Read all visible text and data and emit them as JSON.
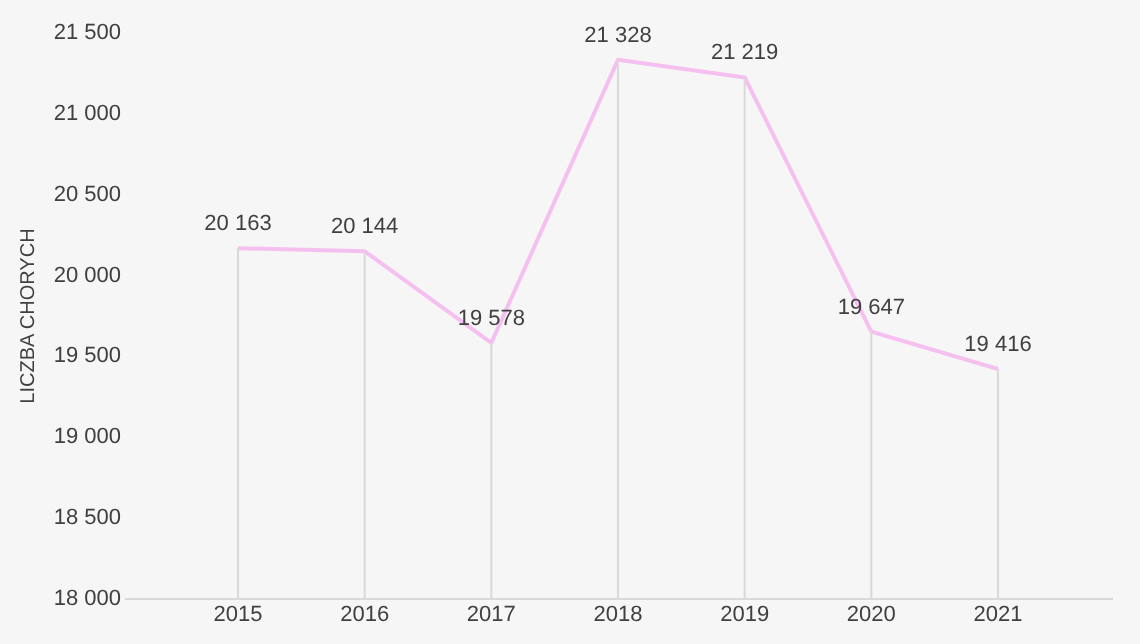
{
  "chart_data": {
    "type": "line",
    "ylabel": "LICZBA CHORYCH",
    "categories": [
      "2015",
      "2016",
      "2017",
      "2018",
      "2019",
      "2020",
      "2021"
    ],
    "series": [
      {
        "color": "#f5c0f0",
        "values": [
          20163,
          20144,
          19578,
          21328,
          21219,
          19647,
          19416
        ],
        "value_labels": [
          "20 163",
          "20 144",
          "19 578",
          "21 328",
          "21 219",
          "19 647",
          "19 416"
        ]
      }
    ],
    "ylim": [
      18000,
      21500
    ],
    "yticks": [
      {
        "value": 18000,
        "label": "18 000"
      },
      {
        "value": 18500,
        "label": "18 500"
      },
      {
        "value": 19000,
        "label": "19 000"
      },
      {
        "value": 19500,
        "label": "19 500"
      },
      {
        "value": 20000,
        "label": "20 000"
      },
      {
        "value": 20500,
        "label": "20 500"
      },
      {
        "value": 21000,
        "label": "21 000"
      },
      {
        "value": 21500,
        "label": "21 500"
      }
    ],
    "marker": "none",
    "line_style": "solid"
  }
}
